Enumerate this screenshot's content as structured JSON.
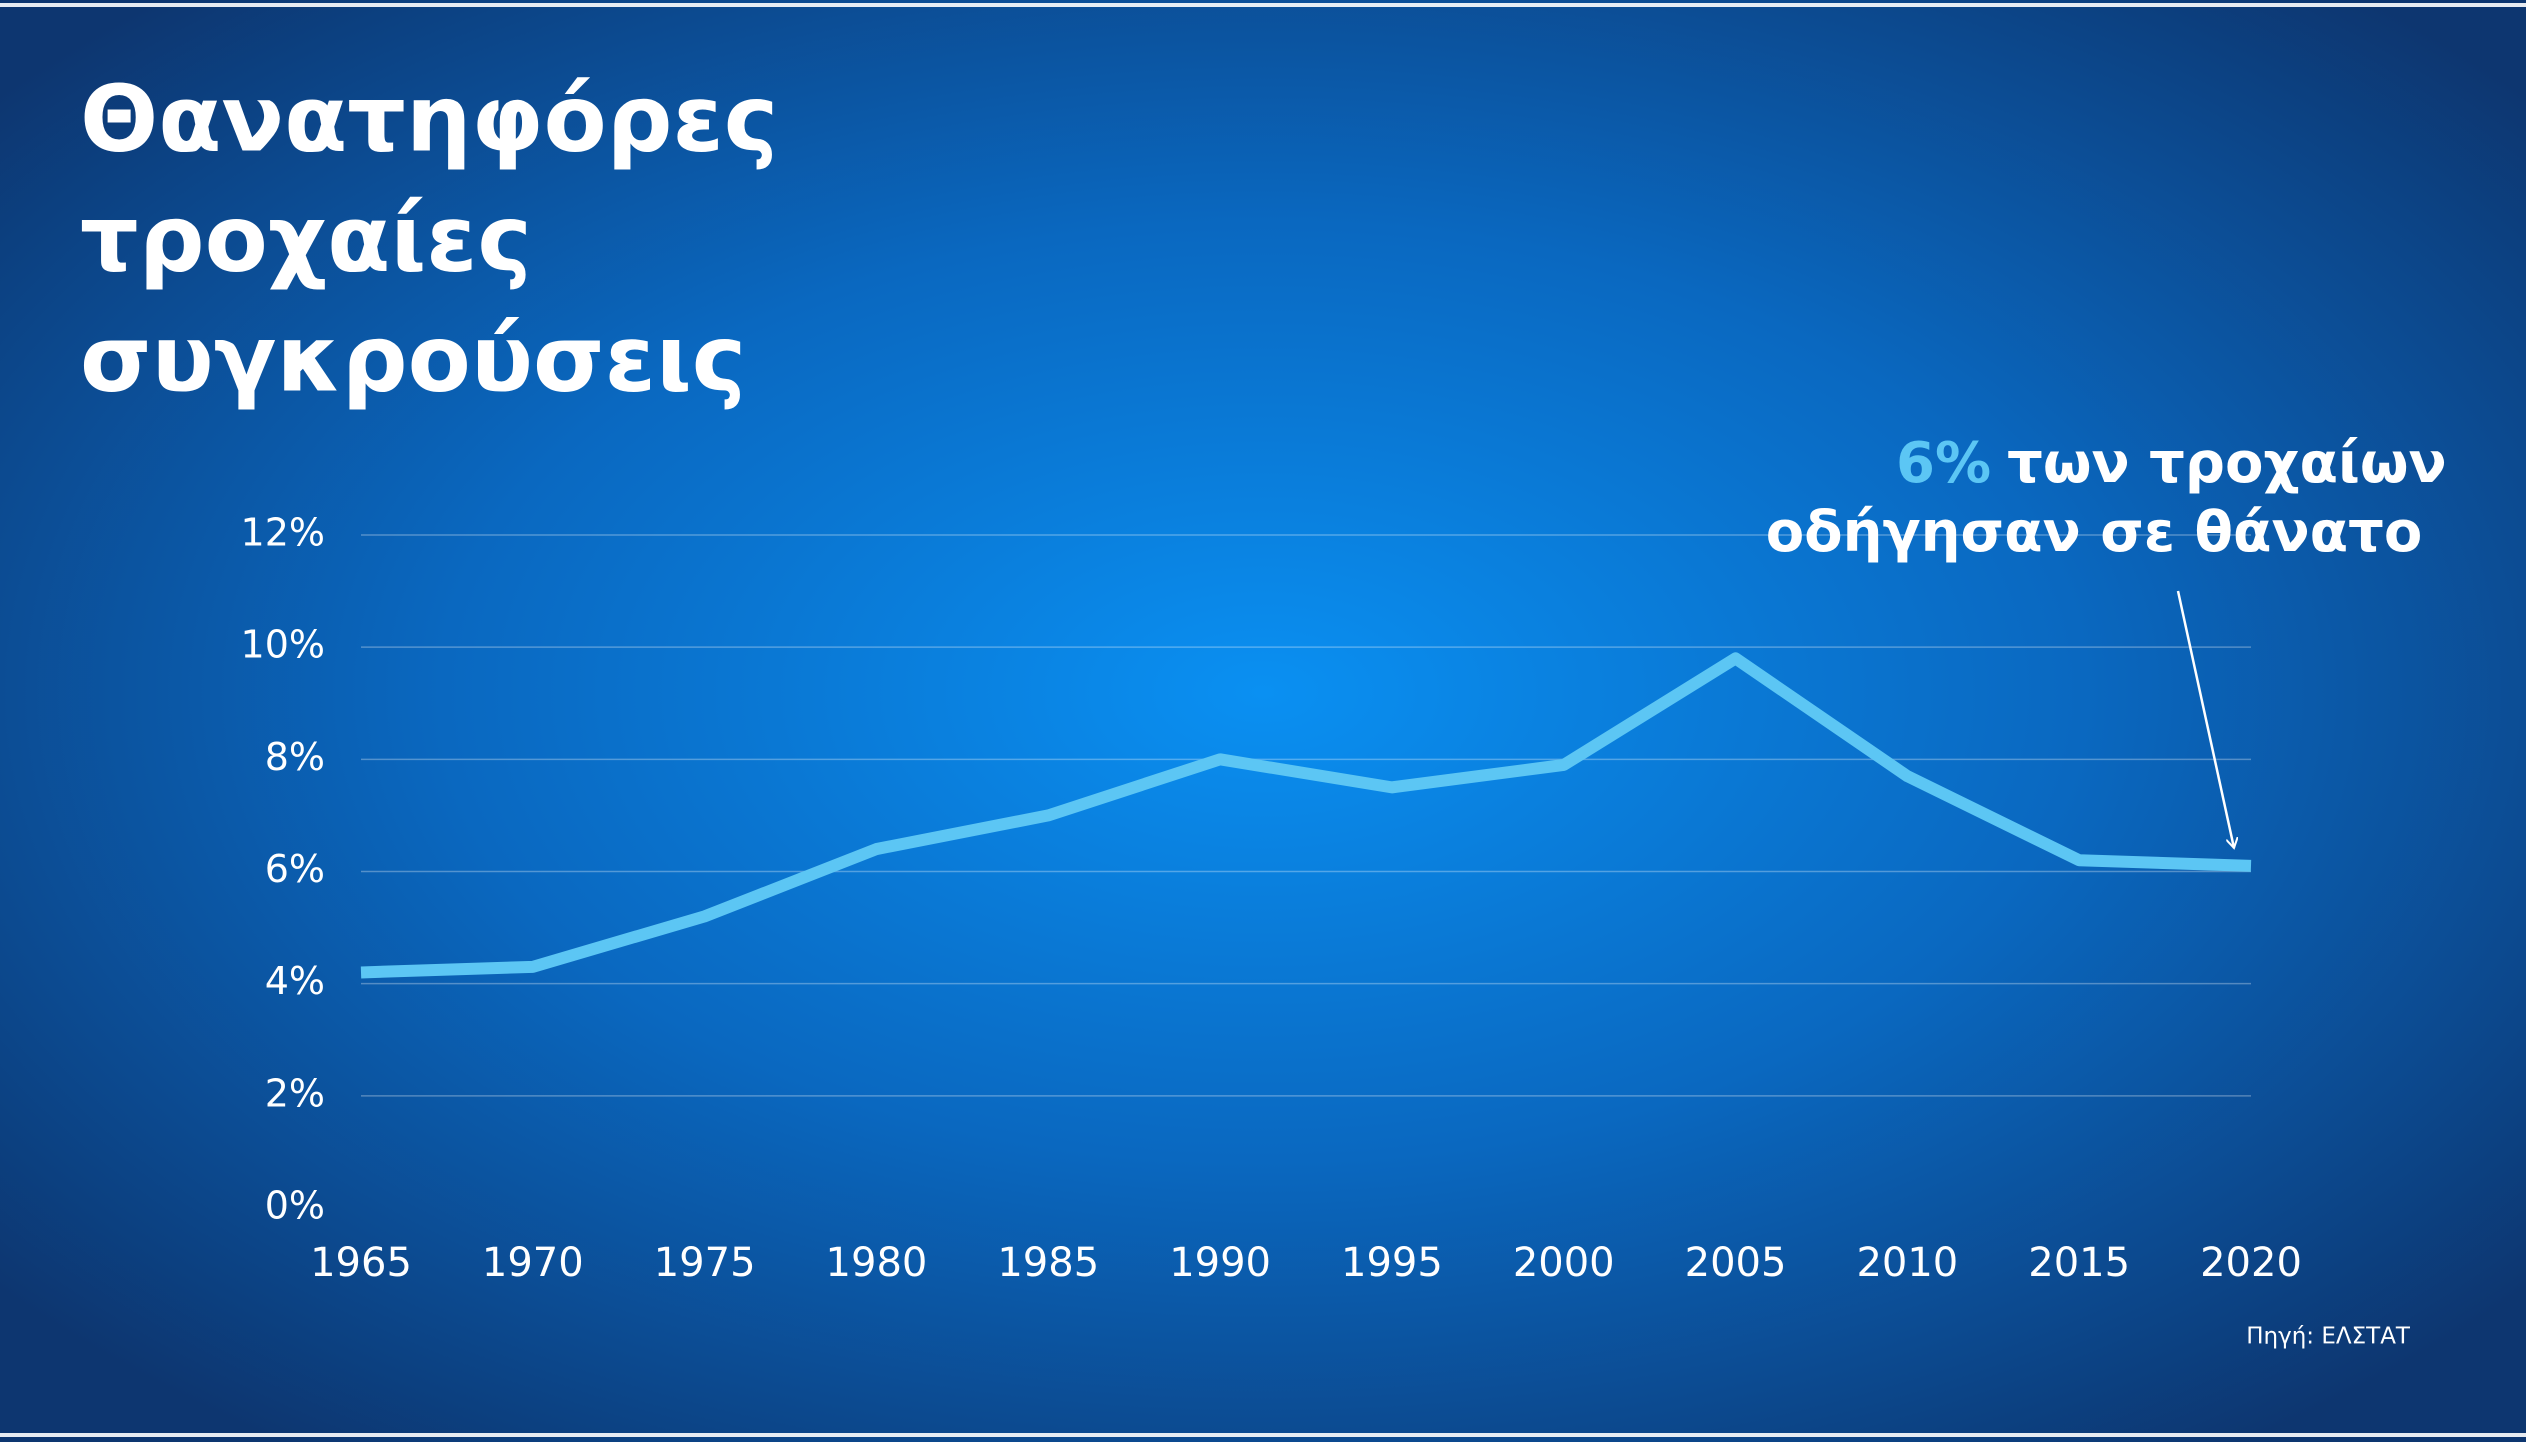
{
  "chart_data": {
    "type": "line",
    "title_lines": [
      "Θανατηφόρες",
      "τροχαίες",
      "συγκρούσεις"
    ],
    "x": [
      1965,
      1970,
      1975,
      1980,
      1985,
      1990,
      1995,
      2000,
      2005,
      2010,
      2015,
      2020
    ],
    "series": [
      {
        "color": "#5cc6f4",
        "values": [
          4.2,
          4.3,
          5.2,
          6.4,
          7.0,
          8.0,
          7.5,
          7.9,
          9.8,
          7.7,
          6.2,
          6.1
        ]
      }
    ],
    "xlim": [
      1965,
      2020
    ],
    "xticks": [
      1965,
      1970,
      1975,
      1980,
      1985,
      1990,
      1995,
      2000,
      2005,
      2010,
      2015,
      2020
    ],
    "ylim": [
      0,
      12
    ],
    "yticks": [
      {
        "value": 0,
        "label": "0%"
      },
      {
        "value": 2,
        "label": "2%"
      },
      {
        "value": 4,
        "label": "4%"
      },
      {
        "value": 6,
        "label": "6%"
      },
      {
        "value": 8,
        "label": "8%"
      },
      {
        "value": 10,
        "label": "10%"
      },
      {
        "value": 12,
        "label": "12%"
      }
    ],
    "grid": true,
    "annotation": {
      "highlight": "6%",
      "line1": "των τροχαίων",
      "line2": "οδήγησαν σε θάνατο"
    },
    "source": "Πηγή: ΕΛΣΤΑΤ"
  }
}
